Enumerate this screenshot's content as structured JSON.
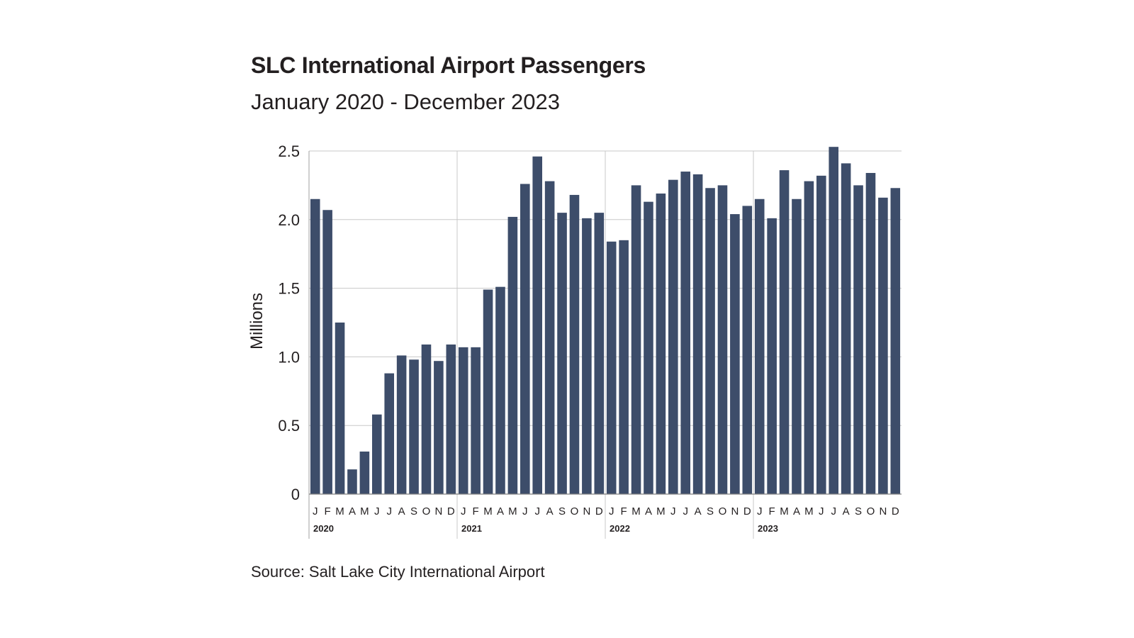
{
  "chart_data": {
    "type": "bar",
    "title": "SLC International Airport Passengers",
    "subtitle": "January 2020 - December 2023",
    "ylabel": "Millions",
    "xlabel": "",
    "ylim": [
      0,
      2.5
    ],
    "yticks": [
      0,
      0.5,
      1.0,
      1.5,
      2.0,
      2.5
    ],
    "ytick_labels": [
      "0",
      "0.5",
      "1.0",
      "1.5",
      "2.0",
      "2.5"
    ],
    "grid": true,
    "bar_color": "#3d4d6a",
    "grid_color": "#c8c8c8",
    "month_labels": [
      "J",
      "F",
      "M",
      "A",
      "M",
      "J",
      "J",
      "A",
      "S",
      "O",
      "N",
      "D"
    ],
    "years": [
      "2020",
      "2021",
      "2022",
      "2023"
    ],
    "series": [
      {
        "name": "Passengers",
        "values": [
          2.15,
          2.07,
          1.25,
          0.18,
          0.31,
          0.58,
          0.88,
          1.01,
          0.98,
          1.09,
          0.97,
          1.09,
          1.07,
          1.07,
          1.49,
          1.51,
          2.02,
          2.26,
          2.46,
          2.28,
          2.05,
          2.18,
          2.01,
          2.05,
          1.84,
          1.85,
          2.25,
          2.13,
          2.19,
          2.29,
          2.35,
          2.33,
          2.23,
          2.25,
          2.04,
          2.1,
          2.15,
          2.01,
          2.36,
          2.15,
          2.28,
          2.32,
          2.53,
          2.41,
          2.25,
          2.34,
          2.16,
          2.23
        ]
      }
    ],
    "source": "Source: Salt Lake City International Airport"
  }
}
